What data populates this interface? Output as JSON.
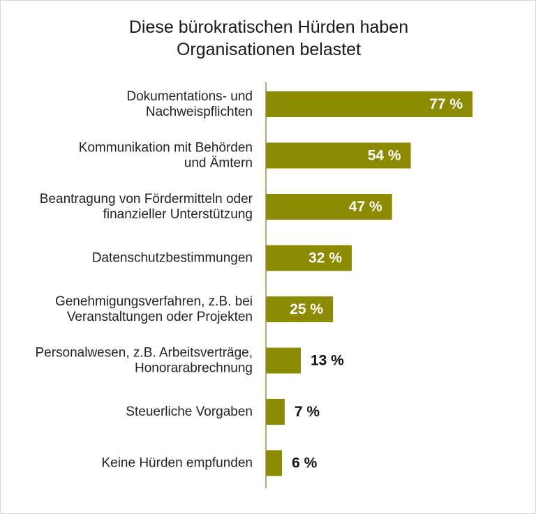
{
  "chart_data": {
    "type": "bar",
    "orientation": "horizontal",
    "title_lines": [
      "Diese bürokratischen Hürden haben",
      "Organisationen belastet"
    ],
    "categories": [
      [
        "Dokumentations- und",
        "Nachweispflichten"
      ],
      [
        "Kommunikation mit Behörden",
        "und Ämtern"
      ],
      [
        "Beantragung von Fördermitteln oder",
        "finanzieller Unterstützung"
      ],
      [
        "Datenschutzbestimmungen"
      ],
      [
        "Genehmigungsverfahren, z.B. bei",
        "Veranstaltungen oder Projekten"
      ],
      [
        "Personalwesen, z.B. Arbeitsverträge,",
        "Honorarabrechnung"
      ],
      [
        "Steuerliche Vorgaben"
      ],
      [
        "Keine Hürden empfunden"
      ]
    ],
    "values": [
      77,
      54,
      47,
      32,
      25,
      13,
      7,
      6
    ],
    "value_labels": [
      "77 %",
      "54 %",
      "47 %",
      "32 %",
      "25 %",
      "13 %",
      "7 %",
      "6 %"
    ],
    "unit": "%",
    "xlim": [
      0,
      100
    ],
    "xlabel": "",
    "ylabel": "",
    "grid": false,
    "legend": "none",
    "colors": {
      "bar": "#8b8a00",
      "label_inside": "#ffffff",
      "label_outside": "#111111",
      "axis": "#9a9440",
      "text": "#222222"
    }
  }
}
